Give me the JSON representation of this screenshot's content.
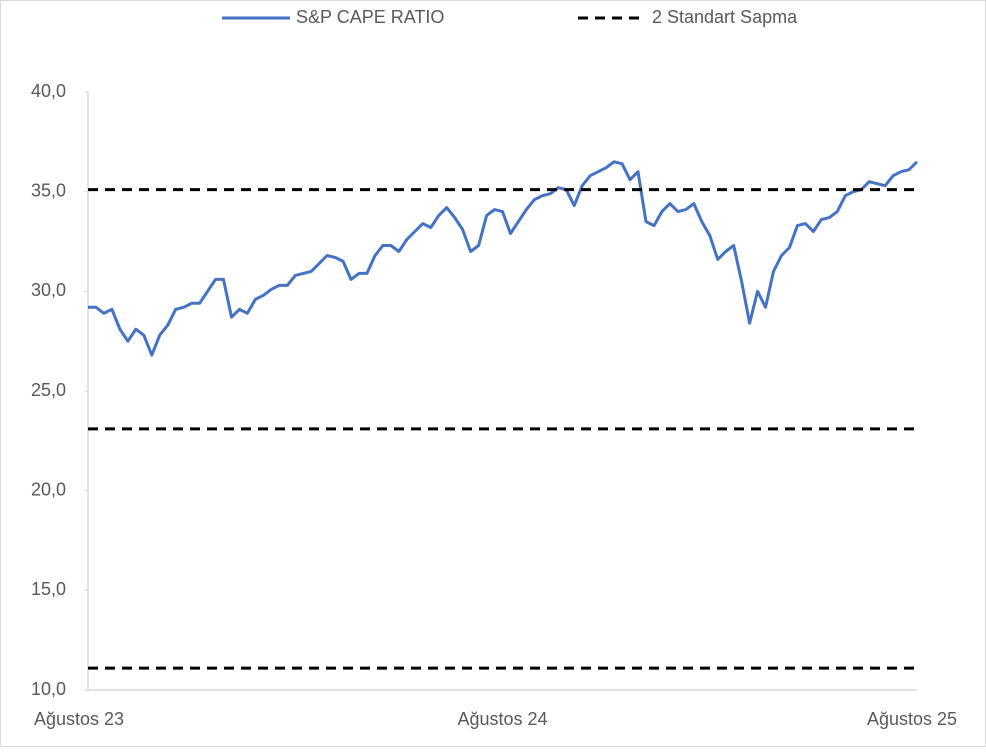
{
  "chart_data": {
    "type": "line",
    "categories": [
      "Ağustos 23",
      null,
      null,
      null,
      null,
      null,
      null,
      null,
      null,
      null,
      null,
      null,
      null,
      null,
      null,
      null,
      null,
      null,
      null,
      null,
      null,
      null,
      null,
      null,
      null,
      null,
      null,
      null,
      null,
      null,
      null,
      null,
      null,
      null,
      null,
      null,
      null,
      null,
      null,
      null,
      null,
      null,
      null,
      null,
      null,
      null,
      null,
      null,
      null,
      null,
      null,
      null,
      "Ağustos 24",
      null,
      null,
      null,
      null,
      null,
      null,
      null,
      null,
      null,
      null,
      null,
      null,
      null,
      null,
      null,
      null,
      null,
      null,
      null,
      null,
      null,
      null,
      null,
      null,
      null,
      null,
      null,
      null,
      null,
      null,
      null,
      null,
      null,
      null,
      null,
      null,
      null,
      null,
      null,
      null,
      null,
      null,
      null,
      null,
      null,
      null,
      null,
      null,
      null,
      null,
      null,
      "Ağustos 25"
    ],
    "series": [
      {
        "name": "S&P CAPE RATIO",
        "color": "#4472c4",
        "values": [
          29.2,
          29.2,
          28.9,
          29.1,
          28.1,
          27.5,
          28.1,
          27.8,
          26.8,
          27.8,
          28.3,
          29.1,
          29.2,
          29.4,
          29.4,
          30.0,
          30.6,
          30.6,
          28.7,
          29.1,
          28.9,
          29.6,
          29.8,
          30.1,
          30.3,
          30.3,
          30.8,
          30.9,
          31.0,
          31.4,
          31.8,
          31.7,
          31.5,
          30.6,
          30.9,
          30.9,
          31.8,
          32.3,
          32.3,
          32.0,
          32.6,
          33.0,
          33.4,
          33.2,
          33.8,
          34.2,
          33.7,
          33.1,
          32.0,
          32.3,
          33.8,
          34.1,
          34.0,
          32.9,
          33.5,
          34.1,
          34.6,
          34.8,
          34.9,
          35.2,
          35.1,
          34.3,
          35.3,
          35.8,
          36.0,
          36.2,
          36.5,
          36.4,
          35.6,
          36.0,
          33.5,
          33.3,
          34.0,
          34.4,
          34.0,
          34.1,
          34.4,
          33.5,
          32.8,
          31.6,
          32.0,
          32.3,
          30.5,
          28.4,
          30.0,
          29.2,
          31.0,
          31.8,
          32.2,
          33.3,
          33.4,
          33.0,
          33.6,
          33.7,
          34.0,
          34.8,
          35.0,
          35.1,
          35.5,
          35.4,
          35.3,
          35.8,
          36.0,
          36.1,
          36.5
        ]
      },
      {
        "name": "2 Standart Sapma",
        "color": "#000000",
        "dashed": true,
        "levels": [
          35.1,
          23.1,
          11.1
        ]
      }
    ],
    "ylim": [
      10,
      40
    ],
    "yticks": [
      {
        "value": 10,
        "label": "10,0"
      },
      {
        "value": 15,
        "label": "15,0"
      },
      {
        "value": 20,
        "label": "20,0"
      },
      {
        "value": 25,
        "label": "25,0"
      },
      {
        "value": 30,
        "label": "30,0"
      },
      {
        "value": 35,
        "label": "35,0"
      },
      {
        "value": 40,
        "label": "40,0"
      }
    ],
    "grid": false
  }
}
